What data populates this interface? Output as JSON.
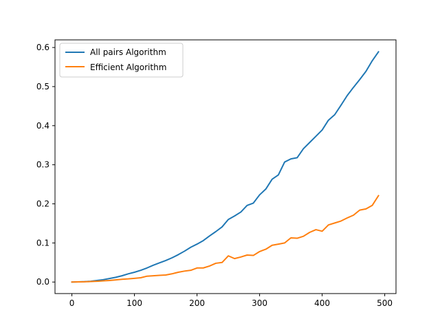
{
  "chart_data": {
    "type": "line",
    "title": "",
    "xlabel": "",
    "ylabel": "",
    "xlim": [
      -27,
      518
    ],
    "ylim": [
      -0.0295,
      0.6195
    ],
    "xticks": [
      0,
      100,
      200,
      300,
      400,
      500
    ],
    "xtick_labels": [
      "0",
      "100",
      "200",
      "300",
      "400",
      "500"
    ],
    "yticks": [
      0.0,
      0.1,
      0.2,
      0.3,
      0.4,
      0.5,
      0.6
    ],
    "ytick_labels": [
      "0.0",
      "0.1",
      "0.2",
      "0.3",
      "0.4",
      "0.5",
      "0.6"
    ],
    "grid": false,
    "legend_position": "upper-left",
    "x": [
      0,
      10,
      20,
      30,
      40,
      50,
      60,
      70,
      80,
      90,
      100,
      110,
      120,
      130,
      140,
      150,
      160,
      170,
      180,
      190,
      200,
      210,
      220,
      230,
      240,
      250,
      260,
      270,
      280,
      290,
      300,
      310,
      320,
      330,
      340,
      350,
      360,
      370,
      380,
      390,
      400,
      410,
      420,
      430,
      440,
      450,
      460,
      470,
      480,
      490
    ],
    "series": [
      {
        "name": "All pairs Algorithm",
        "color": "#1f77b4",
        "values": [
          0.0,
          0.0005,
          0.001,
          0.002,
          0.004,
          0.006,
          0.009,
          0.012,
          0.016,
          0.021,
          0.025,
          0.03,
          0.036,
          0.043,
          0.049,
          0.055,
          0.062,
          0.07,
          0.079,
          0.089,
          0.097,
          0.106,
          0.118,
          0.129,
          0.141,
          0.16,
          0.169,
          0.179,
          0.196,
          0.202,
          0.223,
          0.238,
          0.263,
          0.274,
          0.307,
          0.315,
          0.318,
          0.341,
          0.357,
          0.373,
          0.389,
          0.414,
          0.428,
          0.452,
          0.477,
          0.498,
          0.518,
          0.539,
          0.566,
          0.589
        ]
      },
      {
        "name": "Efficient Algorithm",
        "color": "#ff7f0e",
        "values": [
          0.0,
          0.0003,
          0.0007,
          0.0012,
          0.002,
          0.003,
          0.004,
          0.0055,
          0.007,
          0.008,
          0.0095,
          0.011,
          0.015,
          0.016,
          0.017,
          0.018,
          0.021,
          0.025,
          0.028,
          0.03,
          0.036,
          0.036,
          0.041,
          0.048,
          0.05,
          0.067,
          0.06,
          0.064,
          0.069,
          0.068,
          0.078,
          0.084,
          0.094,
          0.097,
          0.1,
          0.113,
          0.112,
          0.117,
          0.127,
          0.134,
          0.13,
          0.146,
          0.151,
          0.156,
          0.164,
          0.171,
          0.184,
          0.187,
          0.196,
          0.221
        ]
      }
    ]
  }
}
